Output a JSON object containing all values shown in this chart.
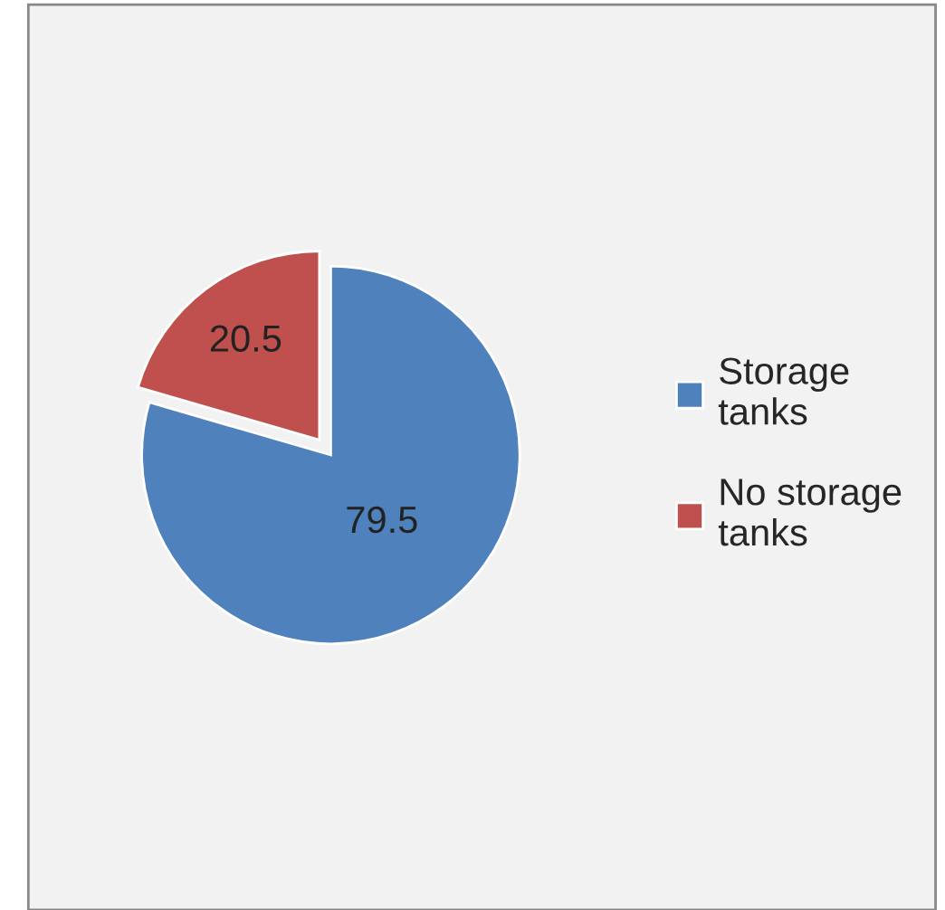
{
  "chart_data": {
    "type": "pie",
    "categories": [
      "Storage tanks",
      "No storage tanks"
    ],
    "values": [
      79.5,
      20.5
    ],
    "colors": [
      "#4f81bd",
      "#c0504d"
    ],
    "data_labels": true,
    "legend": "right"
  }
}
